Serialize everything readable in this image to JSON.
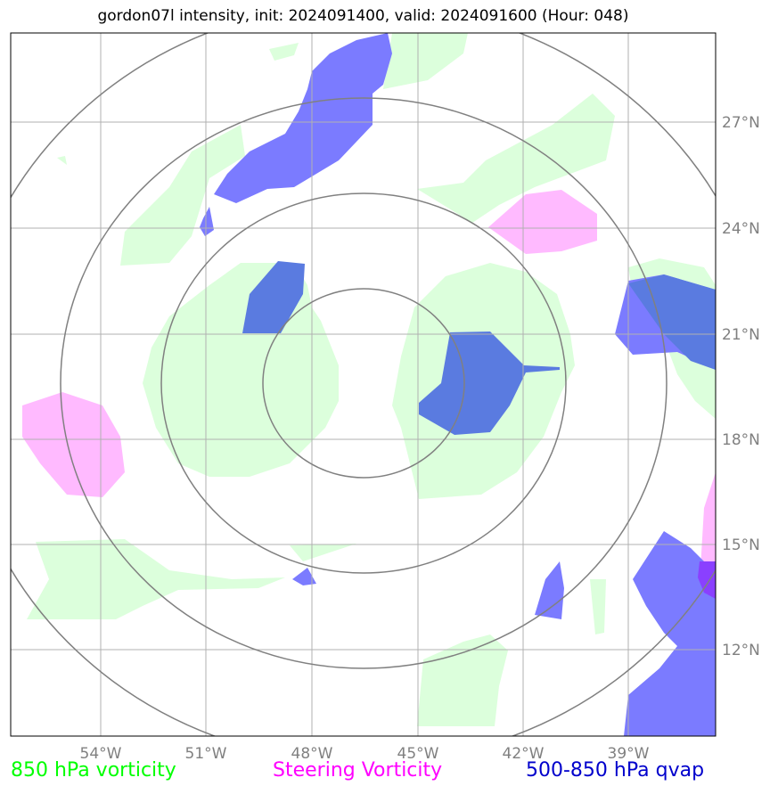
{
  "title": "gordon07l intensity, init: 2024091400, valid: 2024091600 (Hour: 048)",
  "legend": {
    "vorticity_850": {
      "label": "850 hPa vorticity",
      "color": "#00ff00"
    },
    "steering": {
      "label": "Steering Vorticity",
      "color": "#ff00ff"
    },
    "qvap": {
      "label": "500-850 hPa qvap",
      "color": "#0000cc"
    }
  },
  "map": {
    "lon_labels": [
      "54°W",
      "51°W",
      "48°W",
      "45°W",
      "42°W",
      "39°W"
    ],
    "lat_labels": [
      "27°N",
      "24°N",
      "21°N",
      "18°N",
      "15°N",
      "12°N"
    ],
    "fill_colors": {
      "vorticity": "#dcffdc",
      "steering": "#ffb4ff",
      "qvap_light": "#7b7bff",
      "qvap_dark": "#5a7be0"
    }
  }
}
